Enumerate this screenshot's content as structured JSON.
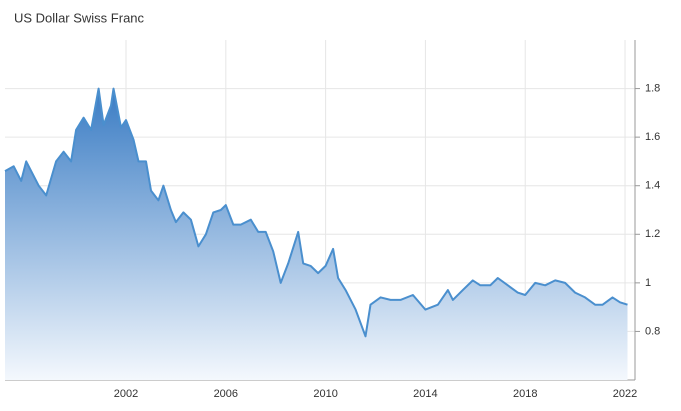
{
  "chart_data": {
    "type": "area",
    "title": "US Dollar Swiss Franc",
    "x": [
      1997.15,
      1997.5,
      1997.8,
      1998.0,
      1998.5,
      1998.8,
      1999.2,
      1999.5,
      1999.8,
      2000.0,
      2000.3,
      2000.6,
      2000.9,
      2001.1,
      2001.4,
      2001.5,
      2001.8,
      2002.0,
      2002.3,
      2002.5,
      2002.8,
      2003.0,
      2003.3,
      2003.5,
      2003.8,
      2004.0,
      2004.3,
      2004.6,
      2004.9,
      2005.2,
      2005.5,
      2005.8,
      2006.0,
      2006.3,
      2006.6,
      2007.0,
      2007.3,
      2007.6,
      2007.9,
      2008.2,
      2008.5,
      2008.9,
      2009.1,
      2009.4,
      2009.7,
      2010.0,
      2010.3,
      2010.5,
      2010.8,
      2011.2,
      2011.6,
      2011.8,
      2012.2,
      2012.6,
      2013.0,
      2013.5,
      2014.0,
      2014.5,
      2014.9,
      2015.1,
      2015.5,
      2015.9,
      2016.2,
      2016.6,
      2016.9,
      2017.3,
      2017.7,
      2018.0,
      2018.4,
      2018.8,
      2019.2,
      2019.6,
      2020.0,
      2020.4,
      2020.8,
      2021.1,
      2021.5,
      2021.8,
      2022.1
    ],
    "series": [
      {
        "color": "#4a8fce",
        "values": [
          1.46,
          1.48,
          1.42,
          1.5,
          1.4,
          1.36,
          1.5,
          1.54,
          1.5,
          1.63,
          1.68,
          1.63,
          1.8,
          1.65,
          1.73,
          1.8,
          1.64,
          1.67,
          1.59,
          1.5,
          1.5,
          1.38,
          1.34,
          1.4,
          1.3,
          1.25,
          1.29,
          1.26,
          1.15,
          1.2,
          1.29,
          1.3,
          1.32,
          1.24,
          1.24,
          1.26,
          1.21,
          1.21,
          1.13,
          1.0,
          1.08,
          1.21,
          1.08,
          1.07,
          1.04,
          1.07,
          1.14,
          1.02,
          0.97,
          0.89,
          0.78,
          0.91,
          0.94,
          0.93,
          0.93,
          0.95,
          0.89,
          0.91,
          0.97,
          0.93,
          0.97,
          1.01,
          0.99,
          0.99,
          1.02,
          0.99,
          0.96,
          0.95,
          1.0,
          0.99,
          1.01,
          1.0,
          0.96,
          0.94,
          0.91,
          0.91,
          0.94,
          0.92,
          0.91
        ]
      }
    ],
    "xlim": [
      1997.15,
      2022.4
    ],
    "xticks": [
      2002,
      2006,
      2010,
      2014,
      2018,
      2022
    ],
    "ylim": [
      0.6,
      2.0
    ],
    "yticks": [
      0.8,
      1,
      1.2,
      1.4,
      1.6,
      1.8
    ],
    "grid": true
  }
}
